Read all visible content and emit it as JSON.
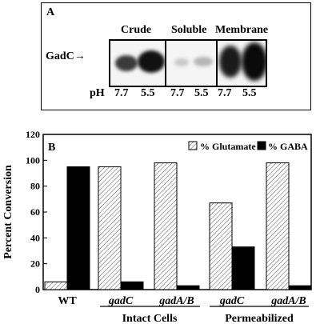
{
  "panel_a": {
    "tag": "A",
    "headers": [
      "Crude",
      "Soluble",
      "Membrane"
    ],
    "protein_label": "GadC",
    "ph_prefix": "pH",
    "ph_values": [
      "7.7",
      "5.5",
      "7.7",
      "5.5",
      "7.7",
      "5.5"
    ]
  },
  "panel_b": {
    "tag": "B",
    "group_labels": [
      "Intact Cells",
      "Permeabilized"
    ]
  },
  "colors": {
    "glutamate_fill": "#ffffff",
    "gaba_fill": "#000000"
  },
  "chart_data": {
    "type": "bar",
    "categories": [
      "WT",
      "gadC",
      "gadA/B",
      "gadC",
      "gadA/B"
    ],
    "series": [
      {
        "name": "% Glutamate",
        "values": [
          6,
          95,
          98,
          67,
          98
        ]
      },
      {
        "name": "% GABA",
        "values": [
          95,
          6,
          3,
          33,
          3
        ]
      }
    ],
    "ylabel": "Percent Conversion",
    "ylim": [
      0,
      120
    ],
    "yticks": [
      "0",
      "20",
      "40",
      "60",
      "80",
      "100",
      "120"
    ],
    "legend": "top-right"
  }
}
